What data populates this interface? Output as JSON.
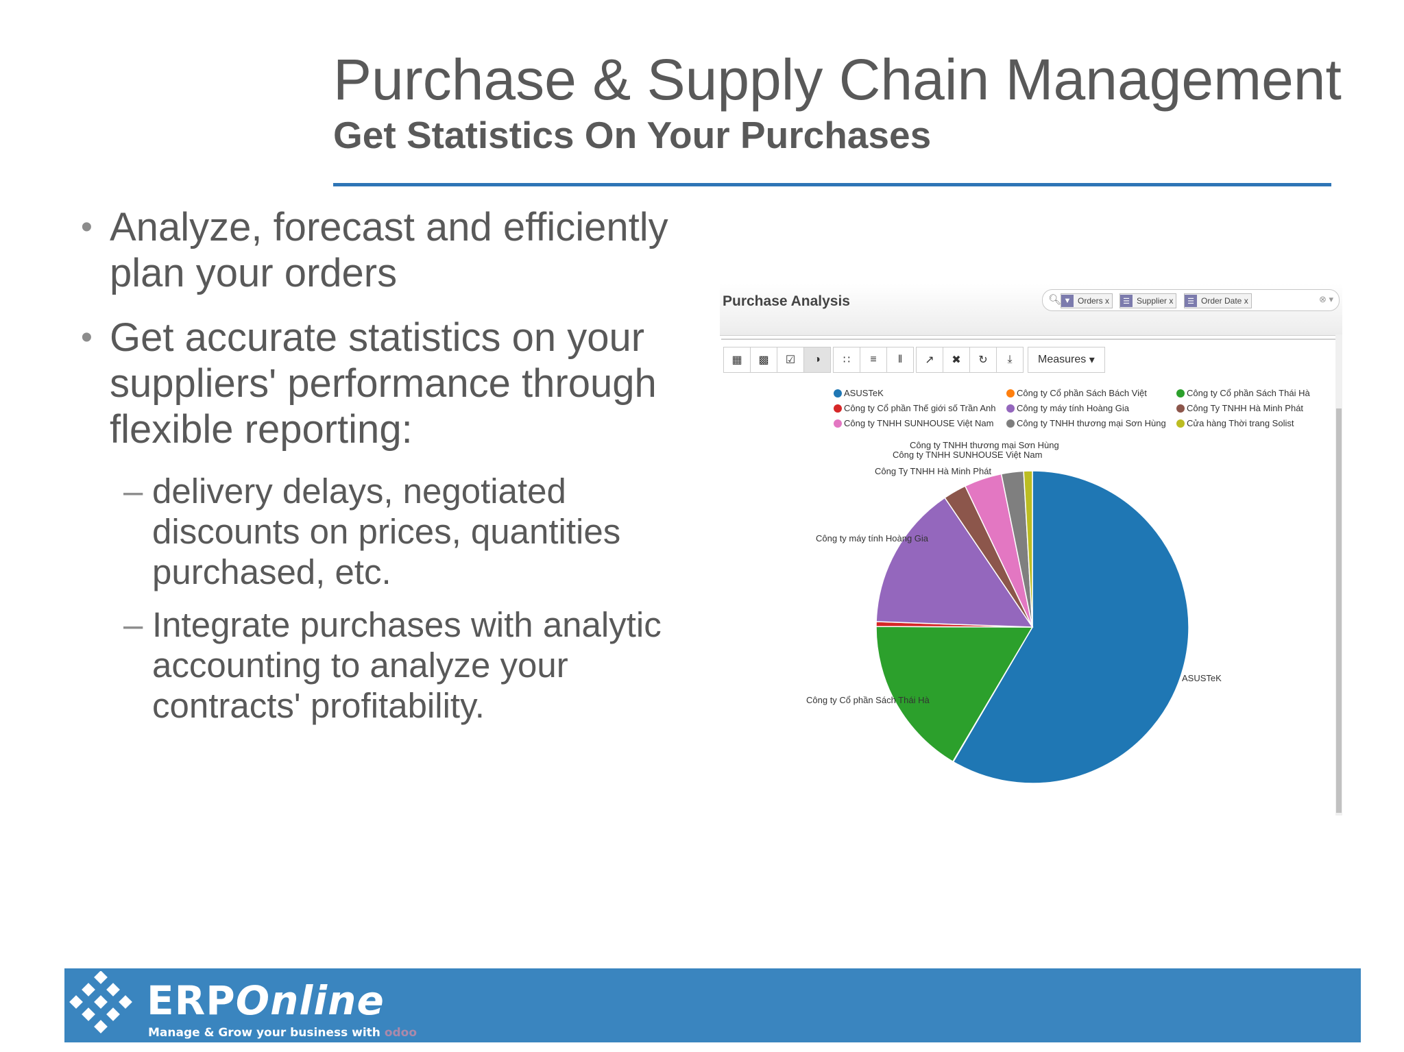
{
  "slide": {
    "title": "Purchase & Supply Chain Management",
    "subtitle": "Get Statistics On Your Purchases",
    "bullets": [
      "Analyze, forecast and efficiently plan your orders",
      "Get accurate statistics on your suppliers' performance through flexible reporting:"
    ],
    "sub_bullets": [
      "delivery delays, negotiated discounts on prices, quantities purchased, etc.",
      "Integrate purchases with analytic accounting to analyze your contracts' profitability."
    ],
    "bullet_mark": "•",
    "sub_bullet_mark": "–",
    "accent_color": "#2e75b6"
  },
  "screenshot": {
    "title": "Purchase Analysis",
    "search_facets": [
      {
        "label": "Orders",
        "icon": "filter-icon"
      },
      {
        "label": "Supplier",
        "icon": "group-icon"
      },
      {
        "label": "Order Date",
        "icon": "group-icon"
      }
    ],
    "facet_close": "x",
    "measures_label": "Measures",
    "toolbar_icons": [
      "table-icon",
      "bar-chart-icon",
      "line-chart-icon",
      "pie-chart-icon",
      "heatmap-icon",
      "expand-rows-icon",
      "expand-cols-icon",
      "swap-axis-icon",
      "fullscreen-icon",
      "reload-icon",
      "download-icon"
    ]
  },
  "chart_data": {
    "type": "pie",
    "legend_placement": "top",
    "slices": [
      {
        "label": "ASUSTeK",
        "value": 58.6,
        "color": "#1f77b4"
      },
      {
        "label": "Công ty Cổ phần Sách Bách Việt",
        "value": 0.05,
        "color": "#ff7f0e"
      },
      {
        "label": "Công ty Cổ phần Sách Thái Hà",
        "value": 16.6,
        "color": "#2ca02c"
      },
      {
        "label": "Công ty Cổ phần Thế giới số Trần Anh",
        "value": 0.5,
        "color": "#d62728"
      },
      {
        "label": "Công ty máy tính Hoàng Gia",
        "value": 15.0,
        "color": "#9467bd"
      },
      {
        "label": "Công Ty TNHH Hà Minh Phát",
        "value": 2.4,
        "color": "#8c564b"
      },
      {
        "label": "Công ty TNHH SUNHOUSE Việt Nam",
        "value": 3.9,
        "color": "#e377c2"
      },
      {
        "label": "Công ty TNHH thương mại Sơn Hùng",
        "value": 2.3,
        "color": "#7f7f7f"
      },
      {
        "label": "Cửa hàng Thời trang Solist",
        "value": 0.9,
        "color": "#bcbd22"
      }
    ],
    "slice_labels": [
      {
        "label": "ASUSTeK"
      },
      {
        "label": "Công ty Cổ phần Sách Thái Hà"
      },
      {
        "label": "Công ty máy tính Hoàng Gia"
      },
      {
        "label": "Công Ty TNHH Hà Minh Phát"
      },
      {
        "label": "Công ty TNHH SUNHOUSE Việt Nam"
      },
      {
        "label": "Công ty TNHH thương mại Sơn Hùng"
      }
    ]
  },
  "footer": {
    "brand_a": "ERP",
    "brand_b": "Online",
    "tagline": "Manage & Grow your business with",
    "tagline_brand": "odoo"
  }
}
